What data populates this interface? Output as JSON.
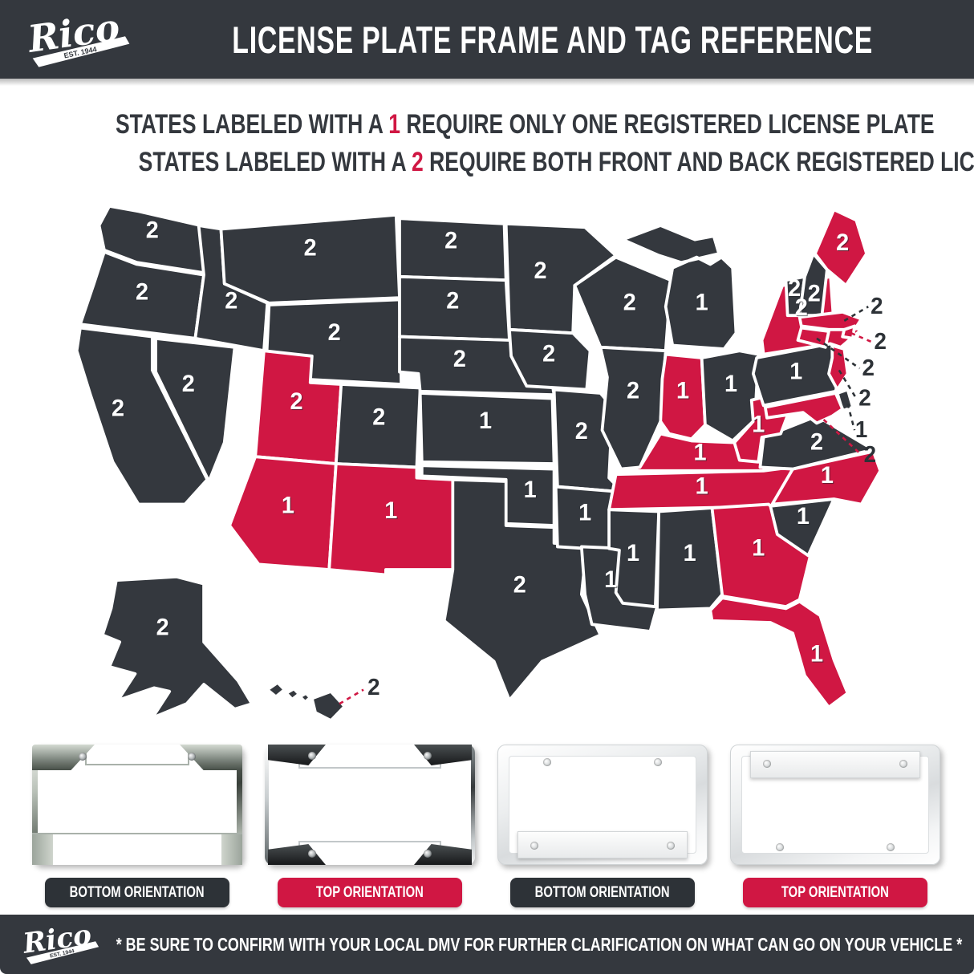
{
  "colors": {
    "dark": "#34383e",
    "red": "#d01743",
    "panel_dark": "#2d3237",
    "white": "#ffffff"
  },
  "header": {
    "brand": "Rico",
    "brand_est": "EST. 1944",
    "title": "LICENSE PLATE FRAME AND TAG REFERENCE"
  },
  "legend": {
    "line1": {
      "prefix": "STATES LABELED WITH A ",
      "number": "1",
      "suffix": " REQUIRE ONLY ONE REGISTERED LICENSE PLATE"
    },
    "line2": {
      "prefix": "STATES LABELED WITH A ",
      "number": "2",
      "suffix": " REQUIRE BOTH FRONT AND BACK REGISTERED LICENSE PLATES"
    }
  },
  "map": {
    "states": [
      {
        "abbr": "WA",
        "plates": "2",
        "color": "dark"
      },
      {
        "abbr": "OR",
        "plates": "2",
        "color": "dark"
      },
      {
        "abbr": "CA",
        "plates": "2",
        "color": "dark"
      },
      {
        "abbr": "NV",
        "plates": "2",
        "color": "dark"
      },
      {
        "abbr": "ID",
        "plates": "2",
        "color": "dark"
      },
      {
        "abbr": "MT",
        "plates": "2",
        "color": "dark"
      },
      {
        "abbr": "WY",
        "plates": "2",
        "color": "dark"
      },
      {
        "abbr": "UT",
        "plates": "2",
        "color": "red"
      },
      {
        "abbr": "CO",
        "plates": "2",
        "color": "dark"
      },
      {
        "abbr": "AZ",
        "plates": "1",
        "color": "red"
      },
      {
        "abbr": "NM",
        "plates": "1",
        "color": "red"
      },
      {
        "abbr": "ND",
        "plates": "2",
        "color": "dark"
      },
      {
        "abbr": "SD",
        "plates": "2",
        "color": "dark"
      },
      {
        "abbr": "NE",
        "plates": "2",
        "color": "dark"
      },
      {
        "abbr": "KS",
        "plates": "1",
        "color": "dark"
      },
      {
        "abbr": "OK",
        "plates": "1",
        "color": "dark"
      },
      {
        "abbr": "TX",
        "plates": "2",
        "color": "dark"
      },
      {
        "abbr": "MN",
        "plates": "2",
        "color": "dark"
      },
      {
        "abbr": "IA",
        "plates": "2",
        "color": "dark"
      },
      {
        "abbr": "MO",
        "plates": "2",
        "color": "dark"
      },
      {
        "abbr": "AR",
        "plates": "1",
        "color": "dark"
      },
      {
        "abbr": "LA",
        "plates": "1",
        "color": "dark"
      },
      {
        "abbr": "WI",
        "plates": "2",
        "color": "dark"
      },
      {
        "abbr": "IL",
        "plates": "2",
        "color": "dark"
      },
      {
        "abbr": "MI",
        "plates": "1",
        "color": "dark"
      },
      {
        "abbr": "IN",
        "plates": "1",
        "color": "red"
      },
      {
        "abbr": "OH",
        "plates": "1",
        "color": "dark"
      },
      {
        "abbr": "KY",
        "plates": "1",
        "color": "red"
      },
      {
        "abbr": "TN",
        "plates": "1",
        "color": "red"
      },
      {
        "abbr": "MS",
        "plates": "1",
        "color": "dark"
      },
      {
        "abbr": "AL",
        "plates": "1",
        "color": "dark"
      },
      {
        "abbr": "GA",
        "plates": "1",
        "color": "red"
      },
      {
        "abbr": "FL",
        "plates": "1",
        "color": "red"
      },
      {
        "abbr": "SC",
        "plates": "1",
        "color": "dark"
      },
      {
        "abbr": "NC",
        "plates": "1",
        "color": "red"
      },
      {
        "abbr": "VA",
        "plates": "2",
        "color": "dark"
      },
      {
        "abbr": "WV",
        "plates": "1",
        "color": "red"
      },
      {
        "abbr": "PA",
        "plates": "1",
        "color": "dark"
      },
      {
        "abbr": "NY",
        "plates": "2",
        "color": "red"
      },
      {
        "abbr": "VT",
        "plates": "2",
        "color": "dark"
      },
      {
        "abbr": "NH",
        "plates": "2",
        "color": "dark"
      },
      {
        "abbr": "ME",
        "plates": "2",
        "color": "red"
      },
      {
        "abbr": "MA",
        "plates": "2",
        "color": "red"
      },
      {
        "abbr": "RI",
        "plates": "2",
        "color": "red"
      },
      {
        "abbr": "CT",
        "plates": "2",
        "color": "red"
      },
      {
        "abbr": "NJ",
        "plates": "2",
        "color": "red"
      },
      {
        "abbr": "DE",
        "plates": "1",
        "color": "dark"
      },
      {
        "abbr": "MD",
        "plates": "2",
        "color": "red"
      },
      {
        "abbr": "AK",
        "plates": "2",
        "color": "dark"
      },
      {
        "abbr": "HI",
        "plates": "2",
        "color": "dark"
      }
    ],
    "callouts": [
      {
        "abbr": "MA",
        "label": "2",
        "line": "dark"
      },
      {
        "abbr": "RI",
        "label": "2",
        "line": "red"
      },
      {
        "abbr": "CT",
        "label": "2",
        "line": "dark"
      },
      {
        "abbr": "NJ",
        "label": "2",
        "line": "dark"
      },
      {
        "abbr": "DE",
        "label": "1",
        "line": "dark"
      },
      {
        "abbr": "MD",
        "label": "2",
        "line": "red"
      },
      {
        "abbr": "HI",
        "label": "2",
        "line": "red"
      }
    ]
  },
  "frames": [
    {
      "style": "chrome",
      "orientation": "bottom",
      "label": "BOTTOM ORIENTATION",
      "label_color": "dark"
    },
    {
      "style": "chrome",
      "orientation": "top",
      "label": "TOP ORIENTATION",
      "label_color": "red"
    },
    {
      "style": "white",
      "orientation": "bottom",
      "label": "BOTTOM ORIENTATION",
      "label_color": "dark"
    },
    {
      "style": "white",
      "orientation": "top",
      "label": "TOP ORIENTATION",
      "label_color": "red"
    }
  ],
  "footer": {
    "brand": "Rico",
    "brand_est": "EST. 1944",
    "note": "* BE SURE TO CONFIRM WITH YOUR LOCAL DMV FOR FURTHER CLARIFICATION ON WHAT CAN GO ON YOUR VEHICLE *"
  }
}
